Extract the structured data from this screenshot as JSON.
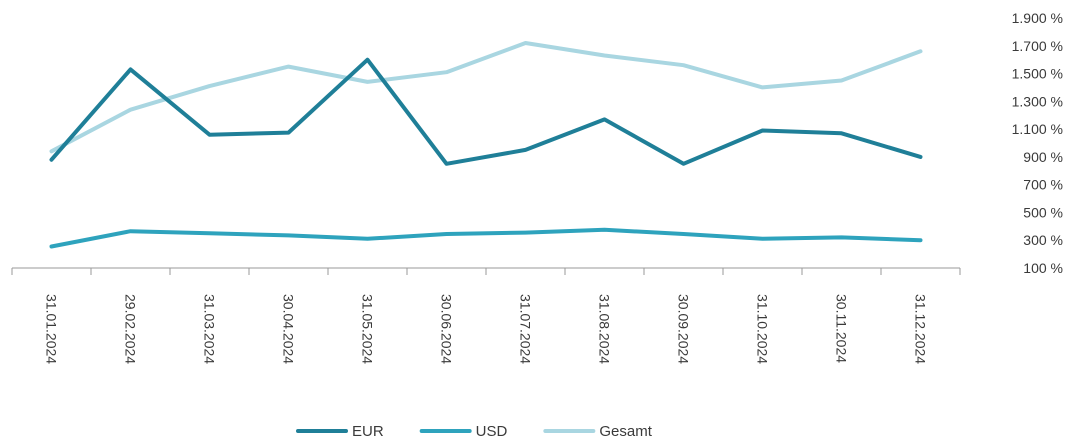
{
  "chart_data": {
    "type": "line",
    "categories": [
      "31.01.2024",
      "29.02.2024",
      "31.03.2024",
      "30.04.2024",
      "31.05.2024",
      "30.06.2024",
      "31.07.2024",
      "31.08.2024",
      "30.09.2024",
      "31.10.2024",
      "30.11.2024",
      "31.12.2024"
    ],
    "y_ticks": [
      "100 %",
      "300 %",
      "500 %",
      "700 %",
      "900 %",
      "1.100 %",
      "1.300 %",
      "1.500 %",
      "1.700 %",
      "1.900 %"
    ],
    "ylim": [
      100,
      1900
    ],
    "y_unit": "%",
    "legend_position": "bottom",
    "grid": false,
    "series": [
      {
        "name": "EUR",
        "color": "#1f7f98",
        "values": [
          880,
          1530,
          1060,
          1075,
          1600,
          850,
          950,
          1170,
          850,
          1090,
          1070,
          900
        ]
      },
      {
        "name": "USD",
        "color": "#2ea3bd",
        "values": [
          255,
          365,
          350,
          335,
          310,
          345,
          355,
          375,
          345,
          310,
          320,
          300
        ]
      },
      {
        "name": "Gesamt",
        "color": "#a9d6e1",
        "values": [
          940,
          1240,
          1410,
          1550,
          1440,
          1510,
          1720,
          1630,
          1560,
          1400,
          1450,
          1660
        ]
      }
    ]
  }
}
